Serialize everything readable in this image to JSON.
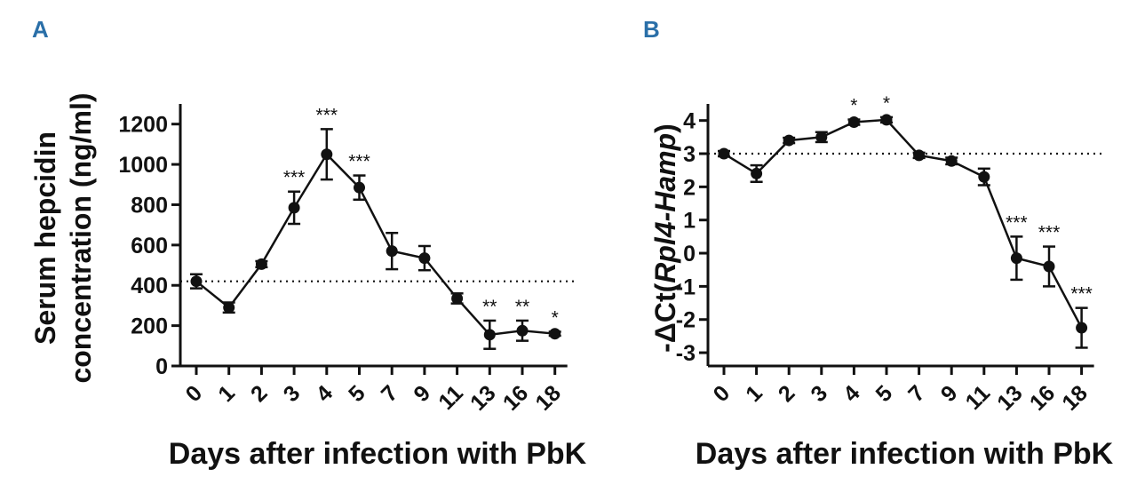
{
  "chart_data": [
    {
      "panel": "A",
      "type": "line",
      "xlabel": "Days after infection with PbK",
      "ylabel_lines": [
        "Serum hepcidin",
        "concentration (ng/ml)"
      ],
      "categories": [
        "0",
        "1",
        "2",
        "3",
        "4",
        "5",
        "7",
        "9",
        "11",
        "13",
        "16",
        "18"
      ],
      "values": [
        420,
        290,
        505,
        785,
        1050,
        885,
        570,
        535,
        335,
        155,
        175,
        160
      ],
      "errors": [
        35,
        25,
        15,
        80,
        125,
        60,
        90,
        60,
        25,
        70,
        50,
        10
      ],
      "significance": [
        "",
        "",
        "",
        "***",
        "***",
        "***",
        "",
        "",
        "",
        "**",
        "**",
        "*"
      ],
      "reference_line": 420,
      "ylim": [
        0,
        1300
      ],
      "yticks": [
        0,
        200,
        400,
        600,
        800,
        1000,
        1200
      ],
      "ytick_labels": [
        "0",
        "200",
        "400",
        "600",
        "800",
        "1000",
        "1200"
      ]
    },
    {
      "panel": "B",
      "type": "line",
      "xlabel": "Days after infection with PbK",
      "ylabel_prefix": "-ΔCt(",
      "ylabel_italic": "Rpl4-Hamp",
      "ylabel_suffix": ")",
      "categories": [
        "0",
        "1",
        "2",
        "3",
        "4",
        "5",
        "7",
        "9",
        "11",
        "13",
        "16",
        "18"
      ],
      "values": [
        3.0,
        2.4,
        3.4,
        3.5,
        3.95,
        4.02,
        2.95,
        2.78,
        2.3,
        -0.15,
        -0.4,
        -2.25
      ],
      "errors": [
        0.08,
        0.25,
        0.08,
        0.15,
        0.08,
        0.08,
        0.08,
        0.1,
        0.25,
        0.65,
        0.6,
        0.6
      ],
      "significance": [
        "",
        "",
        "",
        "",
        "*",
        "*",
        "",
        "",
        "",
        "***",
        "***",
        "***"
      ],
      "reference_line": 3.0,
      "ylim": [
        -3.4,
        4.5
      ],
      "yticks": [
        -3,
        -2,
        -1,
        0,
        1,
        2,
        3,
        4
      ],
      "ytick_labels": [
        "-3",
        "-2",
        "-1",
        "0",
        "1",
        "2",
        "3",
        "4"
      ]
    }
  ]
}
